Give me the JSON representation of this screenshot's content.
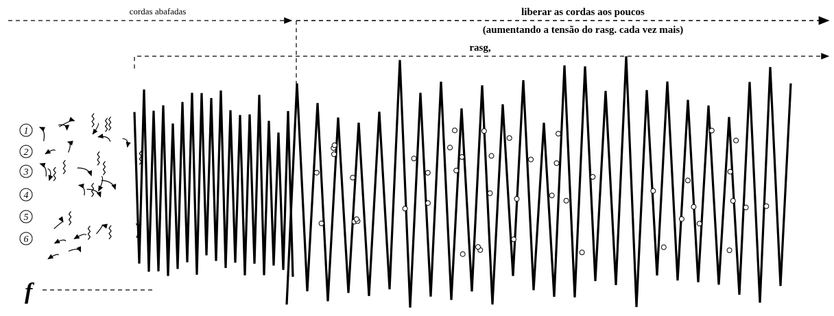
{
  "header": {
    "muted": "cordas abafadas",
    "release": "liberar as cordas aos poucos",
    "release_note": "(aumentando a tensão do rasg. cada vez mais)",
    "strum": "rasg,"
  },
  "strings": [
    "1",
    "2",
    "3",
    "4",
    "5",
    "6"
  ],
  "dynamic": "f"
}
